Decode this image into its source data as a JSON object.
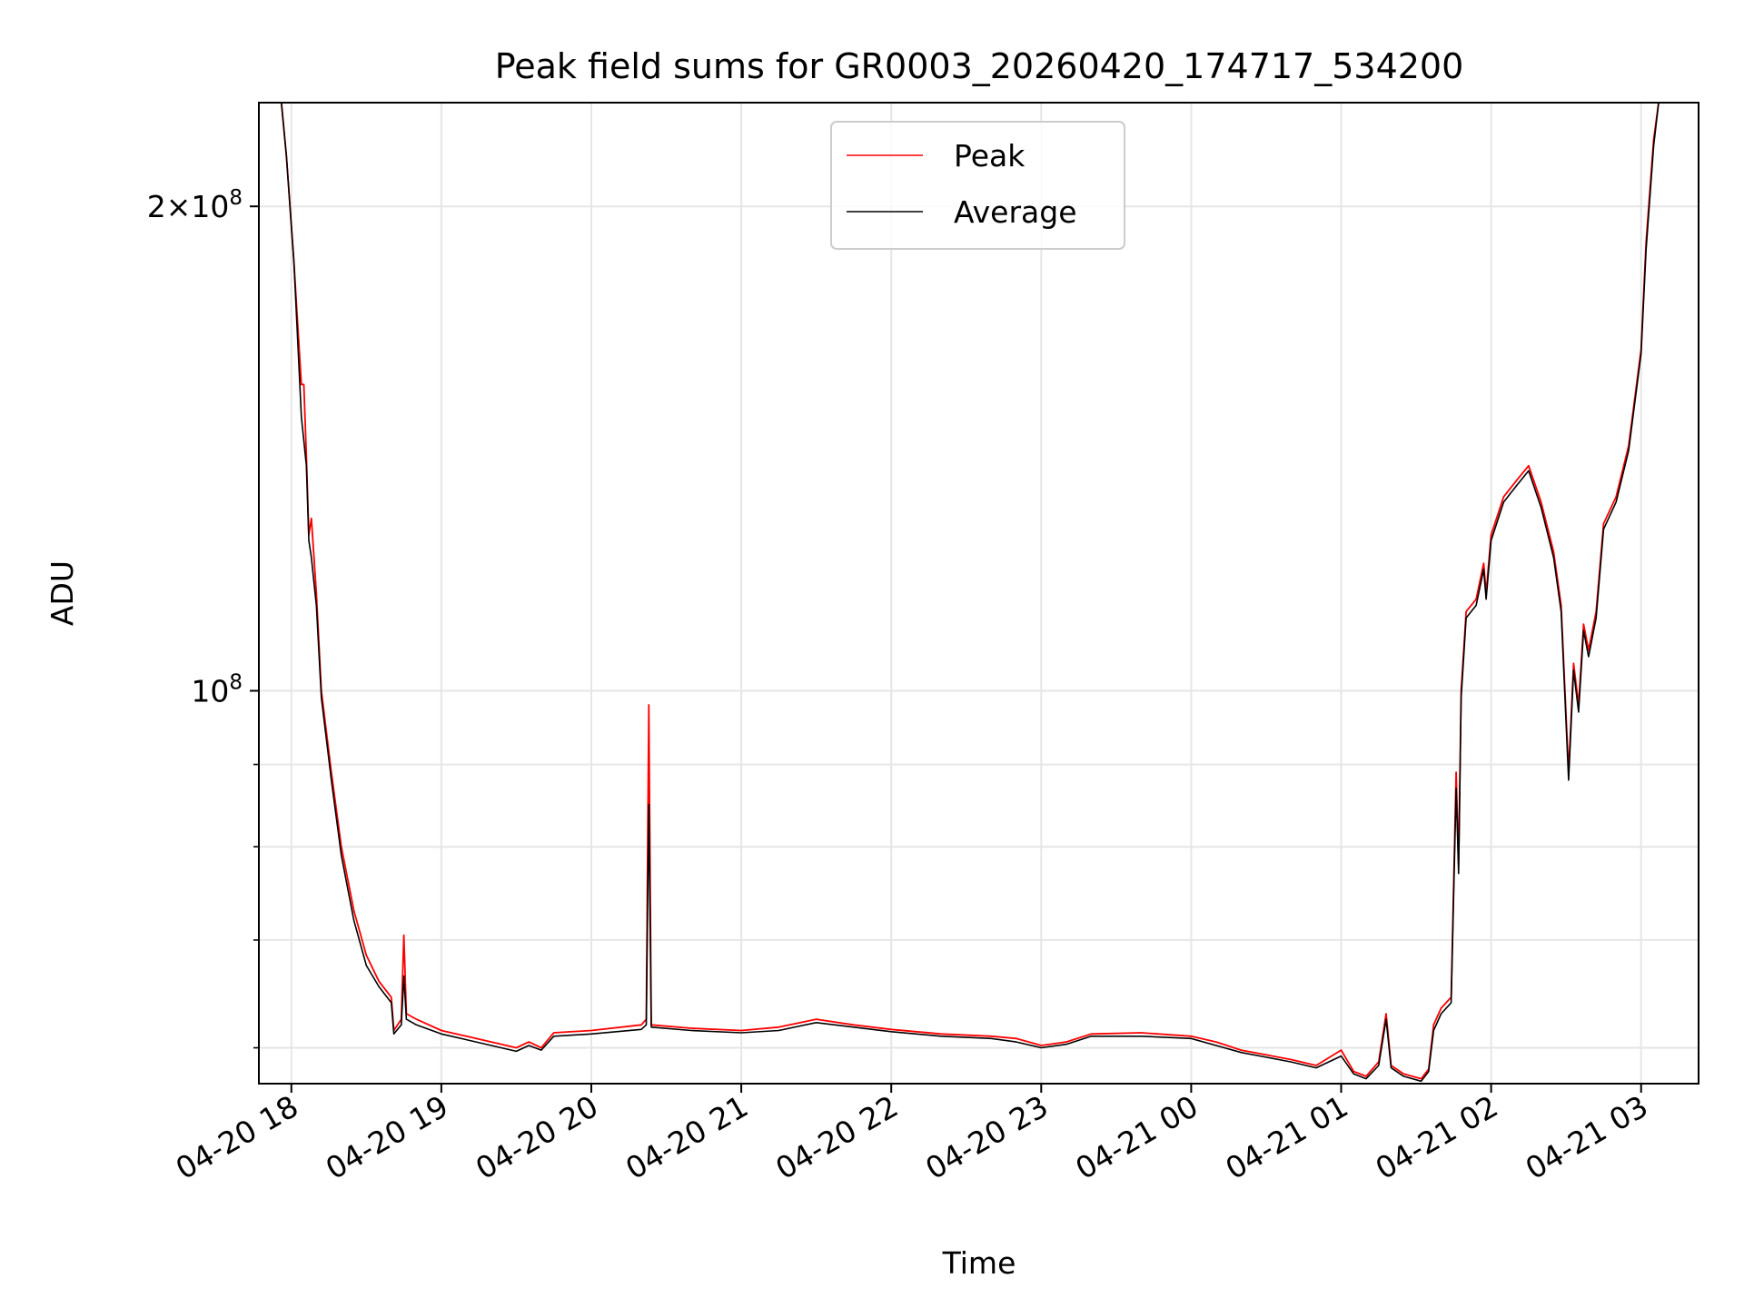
{
  "chart_data": {
    "type": "line",
    "title": "Peak field sums for GR0003_20260420_174717_534200",
    "xlabel": "Time",
    "ylabel": "ADU",
    "yscale": "log",
    "ylim": [
      57000000,
      232000000
    ],
    "xlim": [
      "2026-04-20 17:47",
      "2026-04-21 03:23"
    ],
    "grid": true,
    "legend_placement": "upper center",
    "x_ticks": [
      {
        "value": "2026-04-20 18:00",
        "label": "04-20 18"
      },
      {
        "value": "2026-04-20 19:00",
        "label": "04-20 19"
      },
      {
        "value": "2026-04-20 20:00",
        "label": "04-20 20"
      },
      {
        "value": "2026-04-20 21:00",
        "label": "04-20 21"
      },
      {
        "value": "2026-04-20 22:00",
        "label": "04-20 22"
      },
      {
        "value": "2026-04-20 23:00",
        "label": "04-20 23"
      },
      {
        "value": "2026-04-21 00:00",
        "label": "04-21 00"
      },
      {
        "value": "2026-04-21 01:00",
        "label": "04-21 01"
      },
      {
        "value": "2026-04-21 02:00",
        "label": "04-21 02"
      },
      {
        "value": "2026-04-21 03:00",
        "label": "04-21 03"
      }
    ],
    "y_ticks_major": [
      {
        "value": 100000000,
        "base": "10",
        "exp": "8",
        "label": "10^8"
      },
      {
        "value": 200000000,
        "mant": "2",
        "base": "10",
        "exp": "8",
        "label": "2×10^8"
      }
    ],
    "y_ticks_minor": [
      60000000,
      70000000,
      80000000,
      90000000
    ],
    "series": [
      {
        "name": "Peak",
        "color": "#ff0000",
        "points": [
          [
            "2026-04-20 17:47",
            232000000
          ],
          [
            "2026-04-20 17:56",
            232000000
          ],
          [
            "2026-04-20 17:58",
            215000000
          ],
          [
            "2026-04-20 18:01",
            185000000
          ],
          [
            "2026-04-20 18:04",
            155000000
          ],
          [
            "2026-04-20 18:05",
            155000000
          ],
          [
            "2026-04-20 18:06",
            140000000
          ],
          [
            "2026-04-20 18:07",
            125000000
          ],
          [
            "2026-04-20 18:08",
            128000000
          ],
          [
            "2026-04-20 18:10",
            115000000
          ],
          [
            "2026-04-20 18:12",
            100000000
          ],
          [
            "2026-04-20 18:16",
            89000000
          ],
          [
            "2026-04-20 18:20",
            80000000
          ],
          [
            "2026-04-20 18:25",
            73000000
          ],
          [
            "2026-04-20 18:30",
            68500000
          ],
          [
            "2026-04-20 18:35",
            66000000
          ],
          [
            "2026-04-20 18:40",
            64500000
          ],
          [
            "2026-04-20 18:41",
            61500000
          ],
          [
            "2026-04-20 18:44",
            62500000
          ],
          [
            "2026-04-20 18:45",
            70500000
          ],
          [
            "2026-04-20 18:46",
            63000000
          ],
          [
            "2026-04-20 18:50",
            62500000
          ],
          [
            "2026-04-20 19:00",
            61500000
          ],
          [
            "2026-04-20 19:10",
            61000000
          ],
          [
            "2026-04-20 19:20",
            60500000
          ],
          [
            "2026-04-20 19:30",
            60000000
          ],
          [
            "2026-04-20 19:35",
            60500000
          ],
          [
            "2026-04-20 19:40",
            60000000
          ],
          [
            "2026-04-20 19:45",
            61300000
          ],
          [
            "2026-04-20 20:00",
            61500000
          ],
          [
            "2026-04-20 20:20",
            62000000
          ],
          [
            "2026-04-20 20:22",
            62500000
          ],
          [
            "2026-04-20 20:23",
            98000000
          ],
          [
            "2026-04-20 20:24",
            62000000
          ],
          [
            "2026-04-20 20:40",
            61700000
          ],
          [
            "2026-04-20 21:00",
            61500000
          ],
          [
            "2026-04-20 21:15",
            61800000
          ],
          [
            "2026-04-20 21:30",
            62500000
          ],
          [
            "2026-04-20 21:45",
            62000000
          ],
          [
            "2026-04-20 22:00",
            61600000
          ],
          [
            "2026-04-20 22:20",
            61200000
          ],
          [
            "2026-04-20 22:40",
            61000000
          ],
          [
            "2026-04-20 22:50",
            60800000
          ],
          [
            "2026-04-20 23:00",
            60200000
          ],
          [
            "2026-04-20 23:10",
            60500000
          ],
          [
            "2026-04-20 23:20",
            61200000
          ],
          [
            "2026-04-20 23:40",
            61300000
          ],
          [
            "2026-04-21 00:00",
            61000000
          ],
          [
            "2026-04-21 00:10",
            60500000
          ],
          [
            "2026-04-21 00:20",
            59800000
          ],
          [
            "2026-04-21 00:30",
            59400000
          ],
          [
            "2026-04-21 00:40",
            59000000
          ],
          [
            "2026-04-21 00:50",
            58500000
          ],
          [
            "2026-04-21 01:00",
            59800000
          ],
          [
            "2026-04-21 01:05",
            58000000
          ],
          [
            "2026-04-21 01:10",
            57600000
          ],
          [
            "2026-04-21 01:15",
            58800000
          ],
          [
            "2026-04-21 01:18",
            63000000
          ],
          [
            "2026-04-21 01:20",
            58500000
          ],
          [
            "2026-04-21 01:25",
            57800000
          ],
          [
            "2026-04-21 01:32",
            57400000
          ],
          [
            "2026-04-21 01:35",
            58200000
          ],
          [
            "2026-04-21 01:37",
            62000000
          ],
          [
            "2026-04-21 01:40",
            63500000
          ],
          [
            "2026-04-21 01:44",
            64500000
          ],
          [
            "2026-04-21 01:46",
            89000000
          ],
          [
            "2026-04-21 01:47",
            78000000
          ],
          [
            "2026-04-21 01:48",
            100000000
          ],
          [
            "2026-04-21 01:50",
            112000000
          ],
          [
            "2026-04-21 01:54",
            114000000
          ],
          [
            "2026-04-21 01:57",
            120000000
          ],
          [
            "2026-04-21 01:58",
            115000000
          ],
          [
            "2026-04-21 02:00",
            125000000
          ],
          [
            "2026-04-21 02:05",
            132000000
          ],
          [
            "2026-04-21 02:10",
            135000000
          ],
          [
            "2026-04-21 02:15",
            138000000
          ],
          [
            "2026-04-21 02:20",
            131000000
          ],
          [
            "2026-04-21 02:25",
            122000000
          ],
          [
            "2026-04-21 02:28",
            113000000
          ],
          [
            "2026-04-21 02:31",
            89000000
          ],
          [
            "2026-04-21 02:33",
            104000000
          ],
          [
            "2026-04-21 02:35",
            98000000
          ],
          [
            "2026-04-21 02:37",
            110000000
          ],
          [
            "2026-04-21 02:39",
            106000000
          ],
          [
            "2026-04-21 02:42",
            112000000
          ],
          [
            "2026-04-21 02:45",
            127000000
          ],
          [
            "2026-04-21 02:50",
            132000000
          ],
          [
            "2026-04-21 02:55",
            142000000
          ],
          [
            "2026-04-21 03:00",
            163000000
          ],
          [
            "2026-04-21 03:02",
            190000000
          ],
          [
            "2026-04-21 03:05",
            220000000
          ],
          [
            "2026-04-21 03:07",
            232000000
          ],
          [
            "2026-04-21 03:23",
            232000000
          ]
        ]
      },
      {
        "name": "Average",
        "color": "#000000",
        "points": [
          [
            "2026-04-20 17:47",
            232000000
          ],
          [
            "2026-04-20 17:56",
            232000000
          ],
          [
            "2026-04-20 17:58",
            215000000
          ],
          [
            "2026-04-20 18:01",
            185000000
          ],
          [
            "2026-04-20 18:04",
            148000000
          ],
          [
            "2026-04-20 18:06",
            138000000
          ],
          [
            "2026-04-20 18:07",
            124000000
          ],
          [
            "2026-04-20 18:08",
            121000000
          ],
          [
            "2026-04-20 18:10",
            113000000
          ],
          [
            "2026-04-20 18:12",
            99000000
          ],
          [
            "2026-04-20 18:16",
            88000000
          ],
          [
            "2026-04-20 18:20",
            79000000
          ],
          [
            "2026-04-20 18:25",
            72000000
          ],
          [
            "2026-04-20 18:30",
            67500000
          ],
          [
            "2026-04-20 18:35",
            65500000
          ],
          [
            "2026-04-20 18:40",
            64000000
          ],
          [
            "2026-04-20 18:41",
            61200000
          ],
          [
            "2026-04-20 18:44",
            62000000
          ],
          [
            "2026-04-20 18:45",
            66500000
          ],
          [
            "2026-04-20 18:46",
            62500000
          ],
          [
            "2026-04-20 18:50",
            62000000
          ],
          [
            "2026-04-20 19:00",
            61200000
          ],
          [
            "2026-04-20 19:10",
            60700000
          ],
          [
            "2026-04-20 19:20",
            60200000
          ],
          [
            "2026-04-20 19:30",
            59700000
          ],
          [
            "2026-04-20 19:35",
            60200000
          ],
          [
            "2026-04-20 19:40",
            59800000
          ],
          [
            "2026-04-20 19:45",
            61000000
          ],
          [
            "2026-04-20 20:00",
            61200000
          ],
          [
            "2026-04-20 20:20",
            61600000
          ],
          [
            "2026-04-20 20:22",
            62000000
          ],
          [
            "2026-04-20 20:23",
            85000000
          ],
          [
            "2026-04-20 20:24",
            61800000
          ],
          [
            "2026-04-20 20:40",
            61500000
          ],
          [
            "2026-04-20 21:00",
            61300000
          ],
          [
            "2026-04-20 21:15",
            61500000
          ],
          [
            "2026-04-20 21:30",
            62200000
          ],
          [
            "2026-04-20 21:45",
            61800000
          ],
          [
            "2026-04-20 22:00",
            61400000
          ],
          [
            "2026-04-20 22:20",
            61000000
          ],
          [
            "2026-04-20 22:40",
            60800000
          ],
          [
            "2026-04-20 22:50",
            60500000
          ],
          [
            "2026-04-20 23:00",
            60000000
          ],
          [
            "2026-04-20 23:10",
            60300000
          ],
          [
            "2026-04-20 23:20",
            61000000
          ],
          [
            "2026-04-20 23:40",
            61000000
          ],
          [
            "2026-04-21 00:00",
            60800000
          ],
          [
            "2026-04-21 00:10",
            60200000
          ],
          [
            "2026-04-21 00:20",
            59600000
          ],
          [
            "2026-04-21 00:30",
            59200000
          ],
          [
            "2026-04-21 00:40",
            58800000
          ],
          [
            "2026-04-21 00:50",
            58300000
          ],
          [
            "2026-04-21 01:00",
            59300000
          ],
          [
            "2026-04-21 01:05",
            57800000
          ],
          [
            "2026-04-21 01:10",
            57400000
          ],
          [
            "2026-04-21 01:15",
            58500000
          ],
          [
            "2026-04-21 01:18",
            62500000
          ],
          [
            "2026-04-21 01:20",
            58300000
          ],
          [
            "2026-04-21 01:25",
            57600000
          ],
          [
            "2026-04-21 01:32",
            57200000
          ],
          [
            "2026-04-21 01:35",
            58000000
          ],
          [
            "2026-04-21 01:37",
            61500000
          ],
          [
            "2026-04-21 01:40",
            63000000
          ],
          [
            "2026-04-21 01:44",
            64000000
          ],
          [
            "2026-04-21 01:46",
            87000000
          ],
          [
            "2026-04-21 01:47",
            77000000
          ],
          [
            "2026-04-21 01:48",
            99000000
          ],
          [
            "2026-04-21 01:50",
            111000000
          ],
          [
            "2026-04-21 01:54",
            113000000
          ],
          [
            "2026-04-21 01:57",
            119000000
          ],
          [
            "2026-04-21 01:58",
            114000000
          ],
          [
            "2026-04-21 02:00",
            124000000
          ],
          [
            "2026-04-21 02:05",
            131000000
          ],
          [
            "2026-04-21 02:10",
            134000000
          ],
          [
            "2026-04-21 02:15",
            137000000
          ],
          [
            "2026-04-21 02:20",
            130000000
          ],
          [
            "2026-04-21 02:25",
            121000000
          ],
          [
            "2026-04-21 02:28",
            112000000
          ],
          [
            "2026-04-21 02:31",
            88000000
          ],
          [
            "2026-04-21 02:33",
            103000000
          ],
          [
            "2026-04-21 02:35",
            97000000
          ],
          [
            "2026-04-21 02:37",
            109000000
          ],
          [
            "2026-04-21 02:39",
            105000000
          ],
          [
            "2026-04-21 02:42",
            111000000
          ],
          [
            "2026-04-21 02:45",
            126000000
          ],
          [
            "2026-04-21 02:50",
            131000000
          ],
          [
            "2026-04-21 02:55",
            141000000
          ],
          [
            "2026-04-21 03:00",
            162000000
          ],
          [
            "2026-04-21 03:02",
            188000000
          ],
          [
            "2026-04-21 03:05",
            218000000
          ],
          [
            "2026-04-21 03:07",
            232000000
          ],
          [
            "2026-04-21 03:23",
            232000000
          ]
        ]
      }
    ]
  }
}
